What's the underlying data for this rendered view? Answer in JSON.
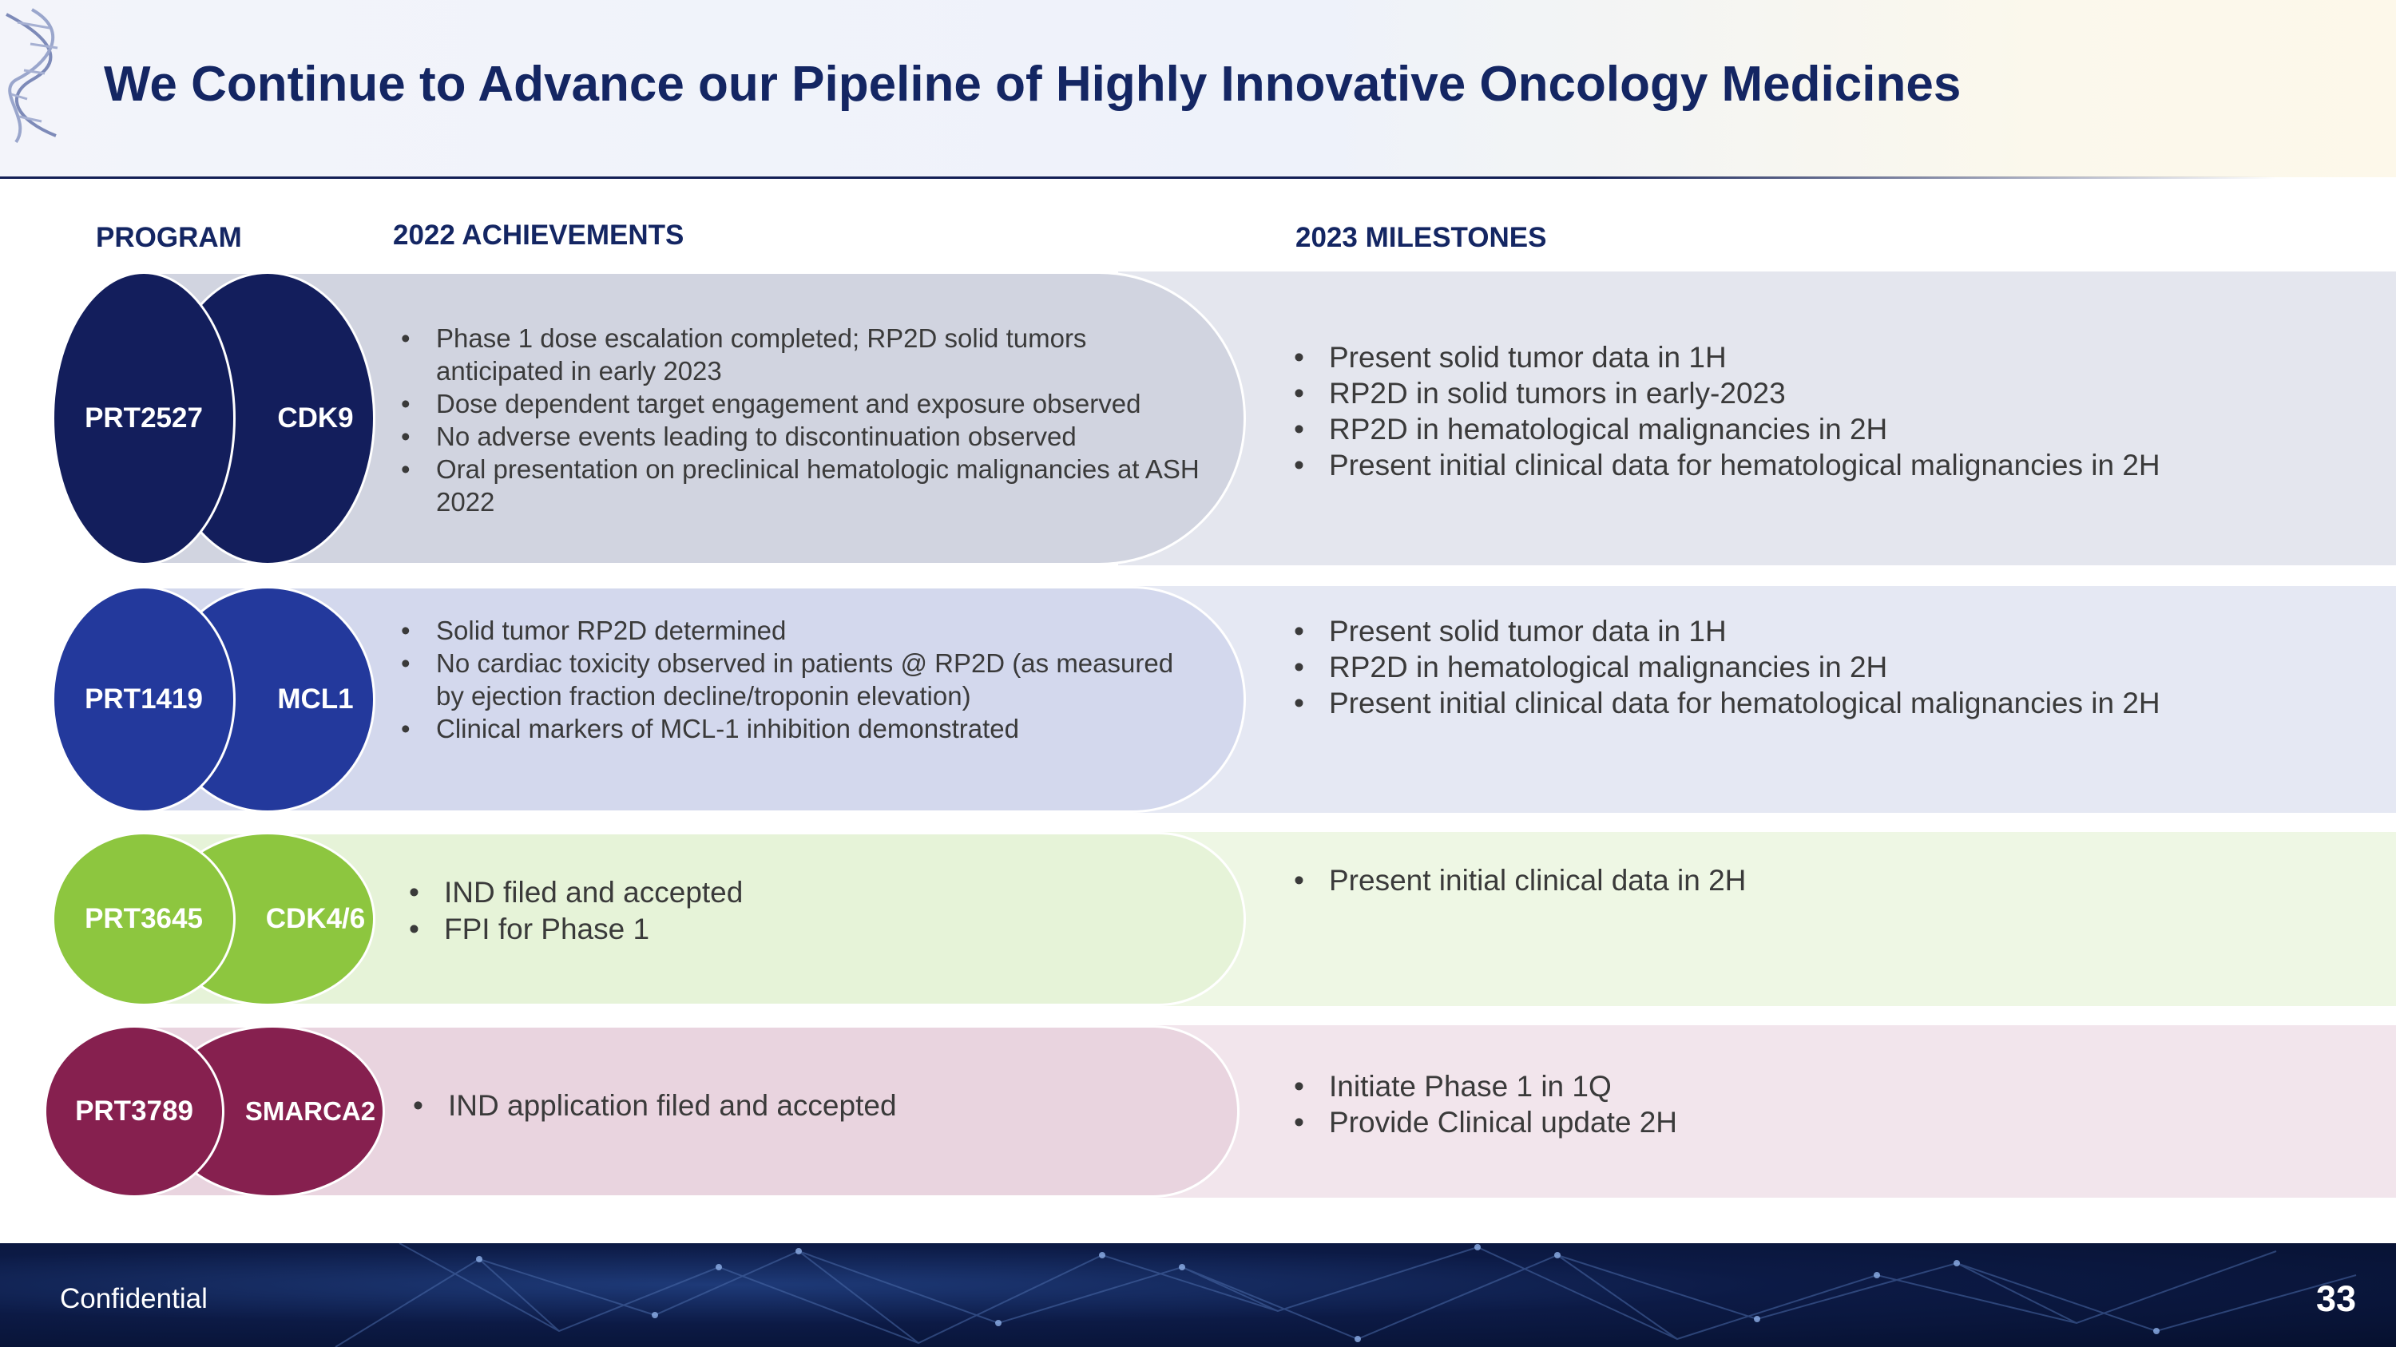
{
  "title": "We Continue to Advance our Pipeline of Highly Innovative Oncology Medicines",
  "columns": {
    "program": "PROGRAM",
    "achievements": "2022 ACHIEVEMENTS",
    "milestones": "2023 MILESTONES"
  },
  "programs": [
    {
      "code": "PRT2527",
      "target": "CDK9",
      "achievements": [
        "Phase 1 dose escalation completed; RP2D solid tumors anticipated in early 2023",
        "Dose dependent target engagement and exposure observed",
        "No adverse events leading to discontinuation observed",
        "Oral presentation on preclinical hematologic malignancies at ASH 2022"
      ],
      "milestones": [
        "Present solid tumor data in 1H",
        "RP2D in solid tumors in early-2023",
        "RP2D in hematological malignancies in 2H",
        "Present initial clinical data for hematological malignancies in 2H"
      ],
      "colors": {
        "oval": "#131e5c",
        "pill": "#d1d4e0",
        "bg": "#e4e6ee"
      }
    },
    {
      "code": "PRT1419",
      "target": "MCL1",
      "achievements": [
        "Solid tumor RP2D determined",
        "No cardiac toxicity observed in patients @ RP2D (as measured by ejection fraction decline/troponin elevation)",
        "Clinical markers of MCL-1 inhibition demonstrated"
      ],
      "milestones": [
        "Present solid tumor data in 1H",
        "RP2D in hematological malignancies in 2H",
        "Present initial clinical data for hematological malignancies in 2H"
      ],
      "colors": {
        "oval": "#23399c",
        "pill": "#d3d8ed",
        "bg": "#e5e8f3"
      }
    },
    {
      "code": "PRT3645",
      "target": "CDK4/6",
      "achievements": [
        "IND filed and accepted",
        "FPI for Phase 1"
      ],
      "milestones": [
        "Present initial clinical data in 2H"
      ],
      "colors": {
        "oval": "#8dc63f",
        "pill": "#e6f3d8",
        "bg": "#eef7e4"
      }
    },
    {
      "code": "PRT3789",
      "target": "SMARCA2",
      "achievements": [
        "IND application filed and accepted"
      ],
      "milestones": [
        "Initiate Phase 1 in 1Q",
        "Provide Clinical update 2H"
      ],
      "colors": {
        "oval": "#86204f",
        "pill": "#e9d4df",
        "bg": "#f2e5ec"
      }
    }
  ],
  "footer": {
    "confidential": "Confidential",
    "page_number": "33"
  }
}
